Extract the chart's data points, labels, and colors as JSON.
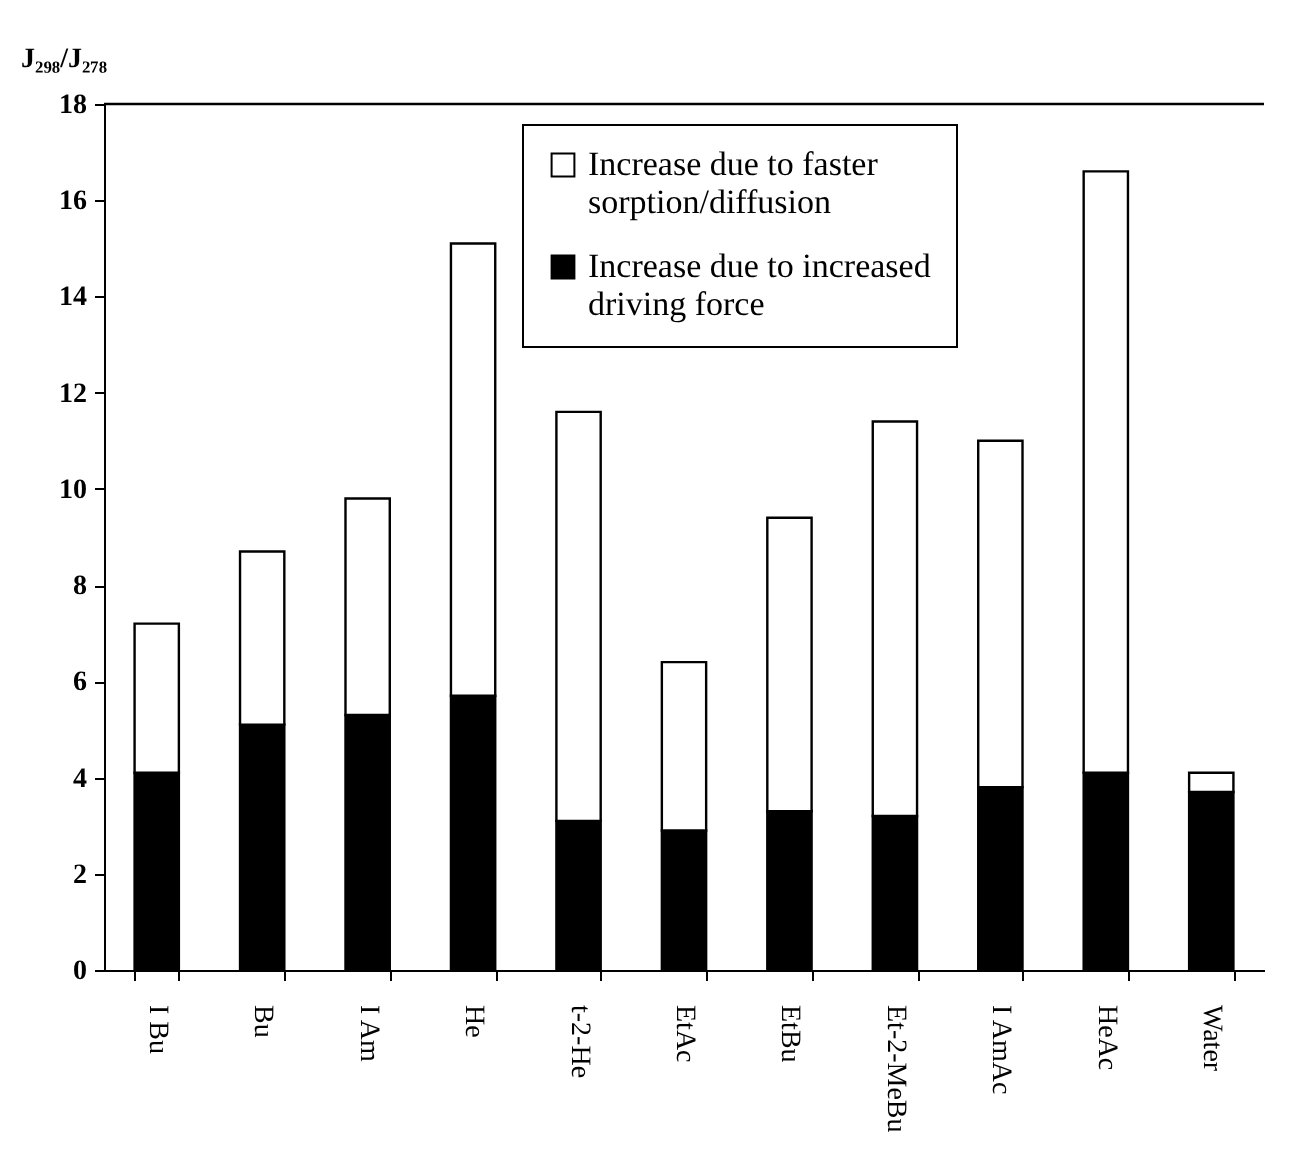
{
  "chart_data": {
    "type": "bar",
    "stacked": true,
    "ylabel": "J₂₉₈/J₂₇₈",
    "categories": [
      "I Bu",
      "Bu",
      "I Am",
      "He",
      "t-2-He",
      "EtAc",
      "EtBu",
      "Et-2-MeBu",
      "I AmAc",
      "HeAc",
      "Water"
    ],
    "series": [
      {
        "name": "Increase due to increased driving force",
        "color": "#000000",
        "values": [
          4.1,
          5.1,
          5.3,
          5.7,
          3.1,
          2.9,
          3.3,
          3.2,
          3.8,
          4.1,
          3.7
        ]
      },
      {
        "name": "Increase due to faster sorption/diffusion",
        "color": "#ffffff",
        "values": [
          3.1,
          3.6,
          4.5,
          9.4,
          8.5,
          3.5,
          6.1,
          8.2,
          7.2,
          12.5,
          0.4
        ]
      }
    ],
    "ylim": [
      0,
      18
    ],
    "yticks": [
      0,
      2,
      4,
      6,
      8,
      10,
      12,
      14,
      16,
      18
    ],
    "grid": false,
    "legend": "top right"
  }
}
